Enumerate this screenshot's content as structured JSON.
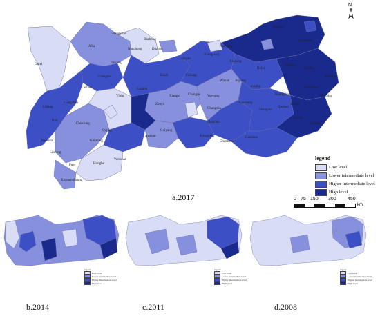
{
  "captions": {
    "main": "a.2017",
    "b": "b.2014",
    "c": "c.2011",
    "d": "d.2008"
  },
  "legend": {
    "title": "legend",
    "items": [
      {
        "label": "Low level",
        "color": "#d9dcf5"
      },
      {
        "label": "Lower intermediate level",
        "color": "#8790dc"
      },
      {
        "label": "Higher Intermediate level",
        "color": "#3d4fc4"
      },
      {
        "label": "High level",
        "color": "#1a2a8c"
      }
    ]
  },
  "scalebar": {
    "ticks": [
      "0",
      "75",
      "150",
      "300",
      "450"
    ],
    "unit": "km"
  },
  "north": "N",
  "city_labels": [
    "Garzi",
    "A'ba",
    "Guangyuan",
    "Bazhong",
    "Dazhou",
    "Nanchong",
    "Deyang",
    "Chengdu",
    "Leshan",
    "Liangshan",
    "Yibin",
    "Luzhou",
    "Zunyi",
    "Guiyang",
    "Anshun",
    "Qujing",
    "Kunming",
    "Chuxiong",
    "Dali",
    "Lijiang",
    "Baoshan",
    "Lincang",
    "Puer",
    "Honghe",
    "Wenshan",
    "Xishuangbanna",
    "Shiyan",
    "Xiangyang",
    "Nanyang",
    "Xinyang",
    "Wuhan",
    "Yichang",
    "Enshi",
    "Xiangxi",
    "Changde",
    "Yueyang",
    "Changsha",
    "Zhuzhou",
    "Hengyang",
    "Chenzhou",
    "Jiujiang",
    "Nanchang",
    "Shangrao",
    "Ganzhou",
    "Hefei",
    "Anqing",
    "Huangshan",
    "Nanjing",
    "Shanghai",
    "Hangzhou",
    "Ningbo",
    "Wenzhou",
    "Lishui",
    "Quzhou",
    "Jinhua",
    "Xuzhou",
    "Suzhou",
    "Yancheng"
  ]
}
